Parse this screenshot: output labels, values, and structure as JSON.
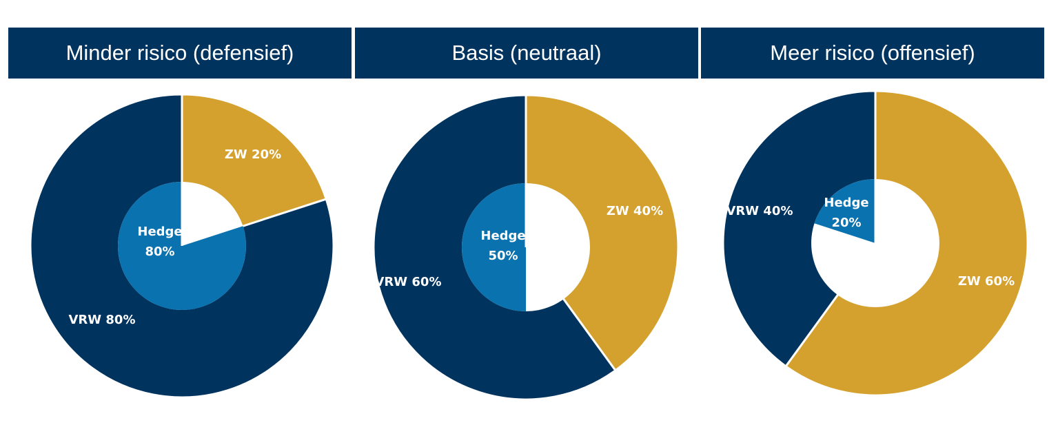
{
  "colors": {
    "header_bg": "#00345f",
    "vrw": "#00345f",
    "zw": "#d4a12e",
    "hedge": "#0a72ae",
    "inner_empty": "#ffffff",
    "separator": "#ffffff"
  },
  "chart_data": [
    {
      "type": "pie",
      "title": "Minder risico (defensief)",
      "outer_ring": [
        {
          "name": "ZW",
          "value": 20,
          "label": "ZW 20%",
          "color": "#d4a12e"
        },
        {
          "name": "VRW",
          "value": 80,
          "label": "VRW 80%",
          "color": "#00345f"
        }
      ],
      "inner_ring": [
        {
          "name": "Hedge",
          "value": 80,
          "label_line1": "Hedge",
          "label_line2": "80%",
          "color": "#0a72ae"
        }
      ]
    },
    {
      "type": "pie",
      "title": "Basis (neutraal)",
      "outer_ring": [
        {
          "name": "ZW",
          "value": 40,
          "label": "ZW 40%",
          "color": "#d4a12e"
        },
        {
          "name": "VRW",
          "value": 60,
          "label": "VRW 60%",
          "color": "#00345f"
        }
      ],
      "inner_ring": [
        {
          "name": "Hedge",
          "value": 50,
          "label_line1": "Hedge",
          "label_line2": "50%",
          "color": "#0a72ae"
        }
      ]
    },
    {
      "type": "pie",
      "title": "Meer risico (offensief)",
      "outer_ring": [
        {
          "name": "ZW",
          "value": 60,
          "label": "ZW 60%",
          "color": "#d4a12e"
        },
        {
          "name": "VRW",
          "value": 40,
          "label": "VRW 40%",
          "color": "#00345f"
        }
      ],
      "inner_ring": [
        {
          "name": "Hedge",
          "value": 20,
          "label_line1": "Hedge",
          "label_line2": "20%",
          "color": "#0a72ae"
        }
      ]
    }
  ]
}
